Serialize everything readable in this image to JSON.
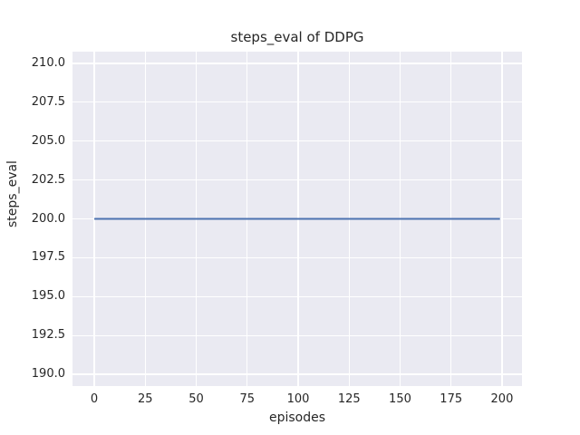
{
  "chart_data": {
    "type": "line",
    "title": "steps_eval of DDPG",
    "xlabel": "episodes",
    "ylabel": "steps_eval",
    "xlim": [
      -10.7,
      209.8
    ],
    "ylim": [
      189.25,
      210.75
    ],
    "xticks": [
      0,
      25,
      50,
      75,
      100,
      125,
      150,
      175,
      200
    ],
    "xtick_labels": [
      "0",
      "25",
      "50",
      "75",
      "100",
      "125",
      "150",
      "175",
      "200"
    ],
    "yticks": [
      190.0,
      192.5,
      195.0,
      197.5,
      200.0,
      202.5,
      205.0,
      207.5,
      210.0
    ],
    "ytick_labels": [
      "190.0",
      "192.5",
      "195.0",
      "197.5",
      "200.0",
      "202.5",
      "205.0",
      "207.5",
      "210.0"
    ],
    "grid": true,
    "legend": "none",
    "series": [
      {
        "name": "DDPG",
        "color": "#4c72b0",
        "x": [
          0,
          199
        ],
        "y": [
          200,
          200
        ]
      }
    ]
  },
  "style": {
    "plot_background": "#eaeaf2",
    "grid_color": "#ffffff",
    "line_color": "#4c72b0",
    "text_color": "#262626",
    "figure_background": "#ffffff"
  }
}
